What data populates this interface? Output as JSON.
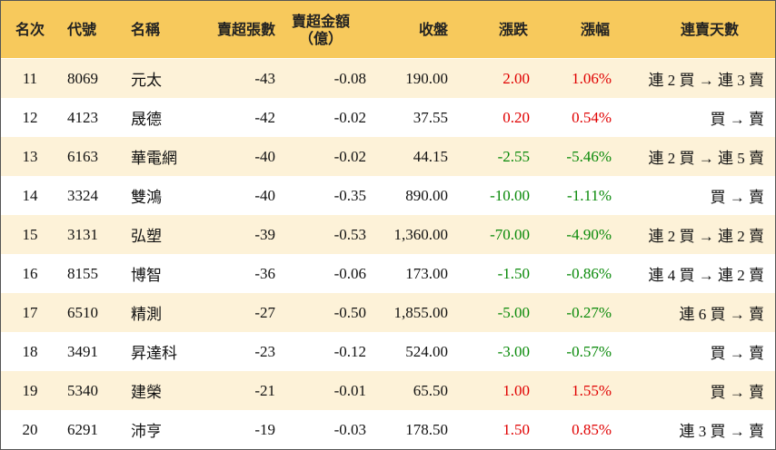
{
  "table": {
    "header": [
      "名次",
      "代號",
      "名稱",
      "賣超張數",
      [
        "賣超金額",
        "（億）"
      ],
      "收盤",
      "漲跌",
      "漲幅",
      "連賣天數"
    ],
    "rows": [
      [
        "11",
        "8069",
        "元太",
        "-43",
        "-0.08",
        "190.00",
        "2.00",
        "1.06%",
        "連 2 買 → 連 3 賣"
      ],
      [
        "12",
        "4123",
        "晟德",
        "-42",
        "-0.02",
        "37.55",
        "0.20",
        "0.54%",
        "買 → 賣"
      ],
      [
        "13",
        "6163",
        "華電網",
        "-40",
        "-0.02",
        "44.15",
        "-2.55",
        "-5.46%",
        "連 2 買 → 連 5 賣"
      ],
      [
        "14",
        "3324",
        "雙鴻",
        "-40",
        "-0.35",
        "890.00",
        "-10.00",
        "-1.11%",
        "買 → 賣"
      ],
      [
        "15",
        "3131",
        "弘塑",
        "-39",
        "-0.53",
        "1,360.00",
        "-70.00",
        "-4.90%",
        "連 2 買 → 連 2 賣"
      ],
      [
        "16",
        "8155",
        "博智",
        "-36",
        "-0.06",
        "173.00",
        "-1.50",
        "-0.86%",
        "連 4 買 → 連 2 賣"
      ],
      [
        "17",
        "6510",
        "精測",
        "-27",
        "-0.50",
        "1,855.00",
        "-5.00",
        "-0.27%",
        "連 6 買 → 賣"
      ],
      [
        "18",
        "3491",
        "昇達科",
        "-23",
        "-0.12",
        "524.00",
        "-3.00",
        "-0.57%",
        "買 → 賣"
      ],
      [
        "19",
        "5340",
        "建榮",
        "-21",
        "-0.01",
        "65.50",
        "1.00",
        "1.55%",
        "買 → 賣"
      ],
      [
        "20",
        "6291",
        "沛亨",
        "-19",
        "-0.03",
        "178.50",
        "1.50",
        "0.85%",
        "連 3 買 → 賣"
      ]
    ]
  }
}
